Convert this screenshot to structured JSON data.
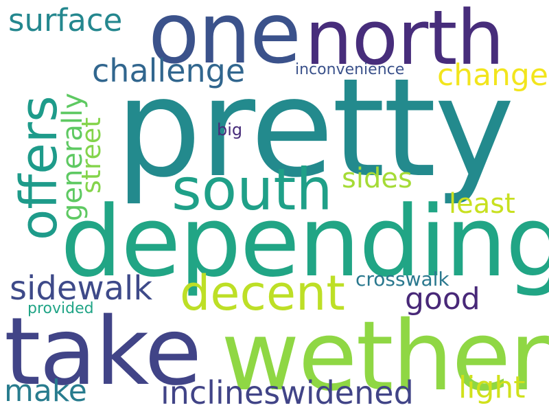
{
  "words": [
    {
      "key": "pretty",
      "text": "pretty",
      "color": "#238a8d"
    },
    {
      "key": "depending",
      "text": "depending",
      "color": "#21a585"
    },
    {
      "key": "wether",
      "text": "wether",
      "color": "#8fd744"
    },
    {
      "key": "take",
      "text": "take",
      "color": "#414487"
    },
    {
      "key": "north",
      "text": "north",
      "color": "#472d7b"
    },
    {
      "key": "one",
      "text": "one",
      "color": "#3b528b"
    },
    {
      "key": "south",
      "text": "south",
      "color": "#1fa088"
    },
    {
      "key": "offers",
      "text": "offers",
      "color": "#1e9b8a"
    },
    {
      "key": "decent",
      "text": "decent",
      "color": "#bddf26"
    },
    {
      "key": "sidewalk",
      "text": "sidewalk",
      "color": "#3e4a89"
    },
    {
      "key": "challenge",
      "text": "challenge",
      "color": "#31668e"
    },
    {
      "key": "surface",
      "text": "surface",
      "color": "#24878e"
    },
    {
      "key": "change",
      "text": "change",
      "color": "#f2e51d"
    },
    {
      "key": "generally",
      "text": "generally",
      "color": "#5ec962"
    },
    {
      "key": "street",
      "text": "street",
      "color": "#84d44b"
    },
    {
      "key": "sides",
      "text": "sides",
      "color": "#a5db36"
    },
    {
      "key": "least",
      "text": "least",
      "color": "#c8e020"
    },
    {
      "key": "good",
      "text": "good",
      "color": "#482878"
    },
    {
      "key": "crosswalk",
      "text": "crosswalk",
      "color": "#2a788e"
    },
    {
      "key": "inconvenience",
      "text": "inconvenience",
      "color": "#3b528b"
    },
    {
      "key": "big",
      "text": "big",
      "color": "#472c7a"
    },
    {
      "key": "provided",
      "text": "provided",
      "color": "#20a486"
    },
    {
      "key": "make",
      "text": "make",
      "color": "#287c8e"
    },
    {
      "key": "inclineswidened",
      "text": "inclineswidened",
      "color": "#414487"
    },
    {
      "key": "light",
      "text": "light",
      "color": "#d0e11c"
    }
  ]
}
